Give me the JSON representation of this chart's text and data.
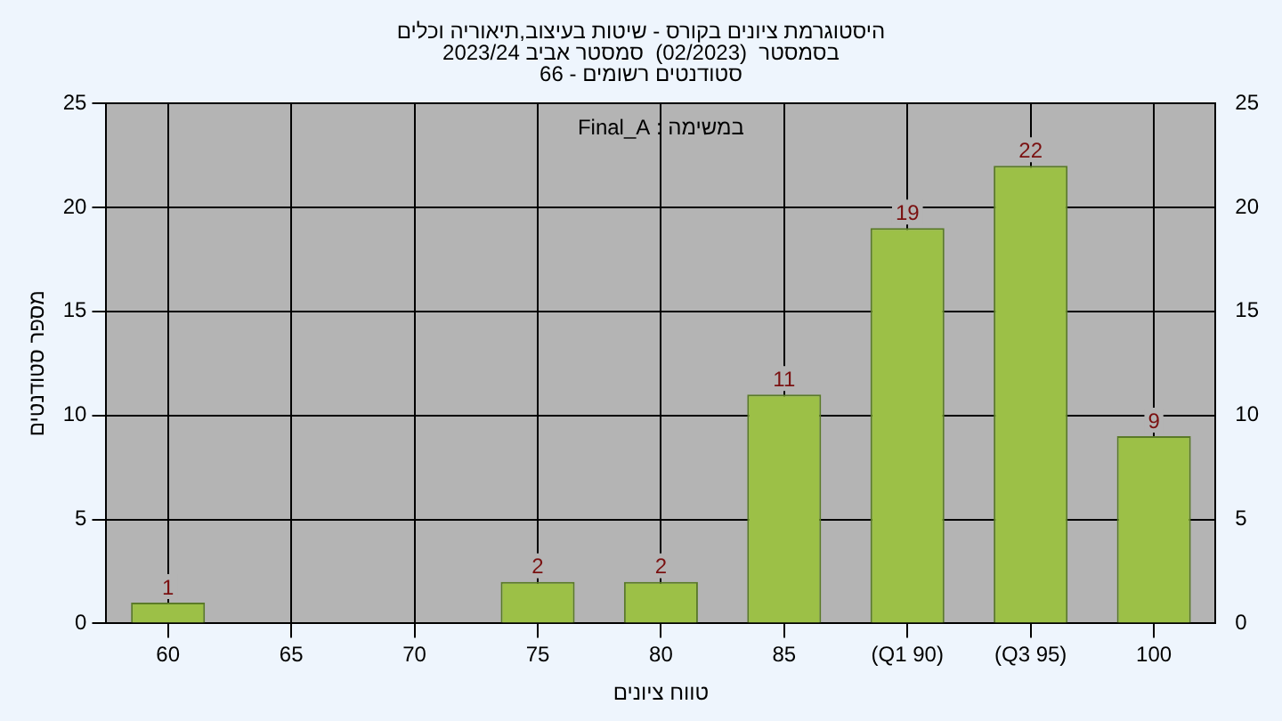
{
  "chart_data": {
    "type": "bar",
    "title": "היסטוגרמת ציונים בקורס - שיטות בעיצוב,תיאוריה וכלים",
    "subtitle": "בסמסטר  (02/2023)  סמסטר אביב 2023/24\nסטודנטים רשומים - 66",
    "xlabel": "טווח ציונים",
    "ylabel": "מספר סטודנטים",
    "categories": [
      "60",
      "65",
      "70",
      "75",
      "80",
      "85",
      "(Q1 90)",
      "(Q3 95)",
      "100"
    ],
    "values": [
      1,
      0,
      0,
      2,
      2,
      11,
      19,
      22,
      9
    ],
    "value_labels": [
      "1",
      null,
      null,
      "2",
      "2",
      "11",
      "19",
      "22",
      "9"
    ],
    "color": "#9cc047",
    "ylim": [
      0,
      25
    ],
    "yticks": [
      0,
      5,
      10,
      15,
      20,
      25
    ],
    "y2lim": [
      0,
      25
    ],
    "y2ticks": [
      0,
      5,
      10,
      15,
      20,
      25
    ],
    "grid": true,
    "annotations": [
      "במשימה : Final_A"
    ]
  }
}
